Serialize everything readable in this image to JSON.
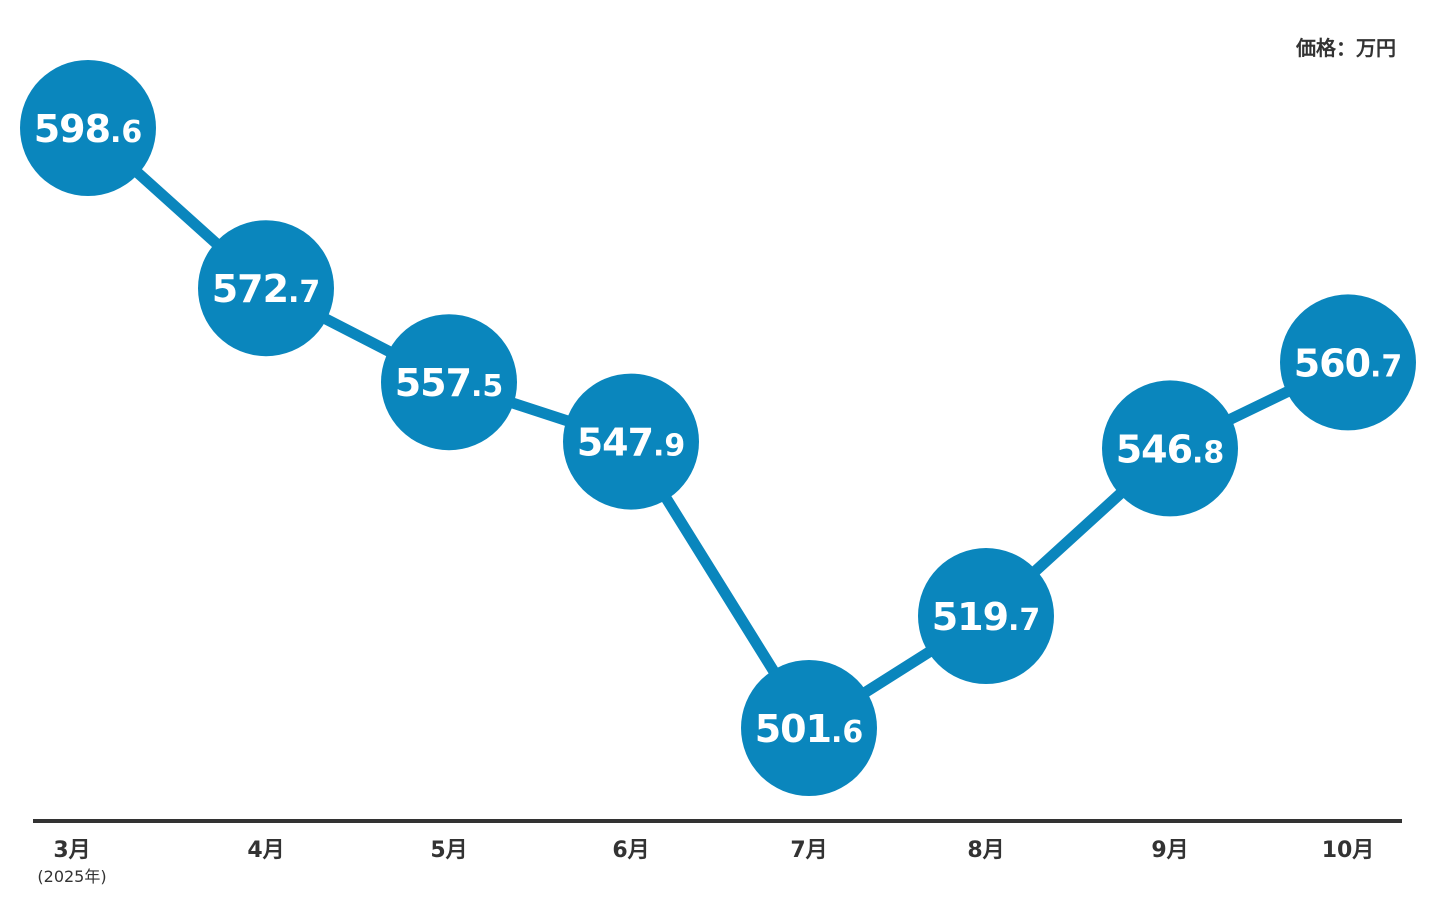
{
  "chart_data": {
    "type": "line",
    "title": "",
    "unit_label": "価格：万円",
    "categories": [
      "3月",
      "4月",
      "5月",
      "6月",
      "7月",
      "8月",
      "9月",
      "10月"
    ],
    "category_sublabels": [
      "(2025年)",
      "",
      "",
      "",
      "",
      "",
      "",
      ""
    ],
    "values": [
      598.6,
      572.7,
      557.5,
      547.9,
      501.6,
      519.7,
      546.8,
      560.7
    ],
    "data_labels": [
      "598.6",
      "572.7",
      "557.5",
      "547.9",
      "501.6",
      "519.7",
      "546.8",
      "560.7"
    ],
    "xlabel": "",
    "ylabel": "",
    "grid": false,
    "colors": {
      "series": "#0a86bd",
      "axis": "#333333",
      "label_text": "#ffffff"
    }
  }
}
